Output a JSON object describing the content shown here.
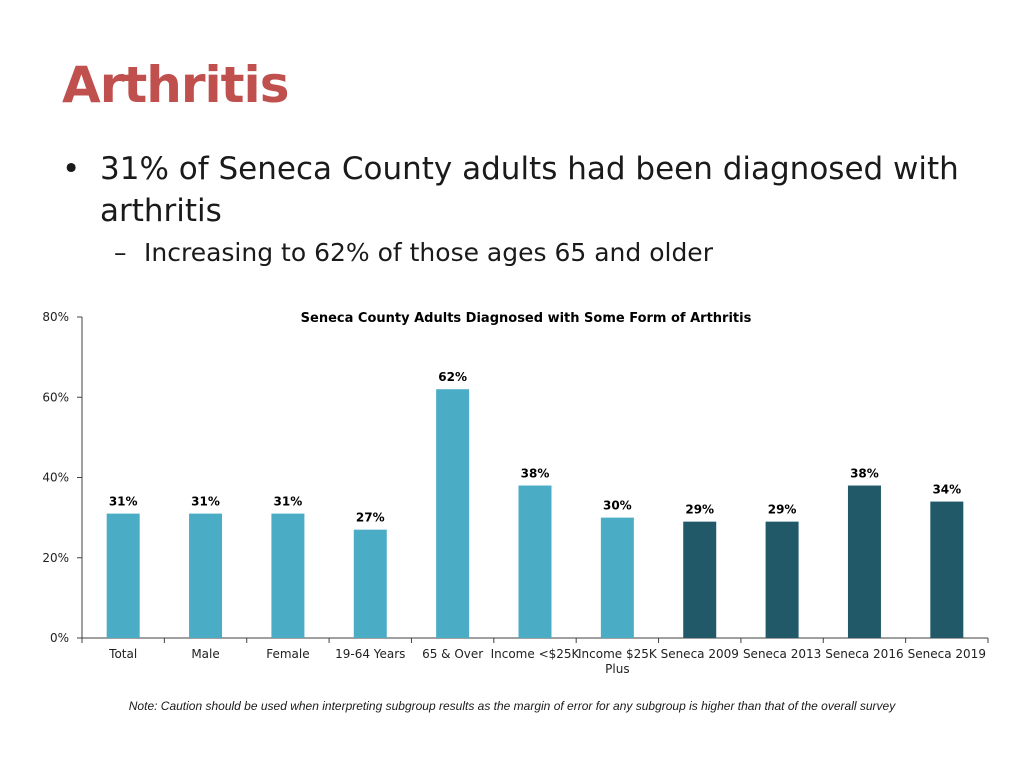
{
  "slide": {
    "title": "Arthritis",
    "bullet": "31% of Seneca County adults had been diagnosed with arthritis",
    "subbullet": "Increasing to 62% of those ages 65 and older",
    "bullet_marker": "•",
    "subbullet_marker": "–",
    "note": "Note: Caution should be used when interpreting subgroup results as the margin of error for any subgroup is higher than that of the overall survey"
  },
  "colors": {
    "title": "#c0504d",
    "bar_subgroup": "#4bacc6",
    "bar_trend": "#215968",
    "axis": "#404040"
  },
  "chart_data": {
    "type": "bar",
    "title": "Seneca County Adults Diagnosed with Some Form of Arthritis",
    "xlabel": "",
    "ylabel": "",
    "ylim": [
      0,
      80
    ],
    "yticks": [
      0,
      20,
      40,
      60,
      80
    ],
    "ytick_labels": [
      "0%",
      "20%",
      "40%",
      "60%",
      "80%"
    ],
    "categories": [
      "Total",
      "Male",
      "Female",
      "19-64 Years",
      "65 & Over",
      "Income <$25K",
      "Income $25K Plus",
      "Seneca 2009",
      "Seneca 2013",
      "Seneca 2016",
      "Seneca 2019"
    ],
    "category_lines": [
      [
        "Total"
      ],
      [
        "Male"
      ],
      [
        "Female"
      ],
      [
        "19-64 Years"
      ],
      [
        "65 & Over"
      ],
      [
        "Income <$25K"
      ],
      [
        "Income $25K",
        "Plus"
      ],
      [
        "Seneca 2009"
      ],
      [
        "Seneca 2013"
      ],
      [
        "Seneca 2016"
      ],
      [
        "Seneca 2019"
      ]
    ],
    "values": [
      31,
      31,
      31,
      27,
      62,
      38,
      30,
      29,
      29,
      38,
      34
    ],
    "data_labels": [
      "31%",
      "31%",
      "31%",
      "27%",
      "62%",
      "38%",
      "30%",
      "29%",
      "29%",
      "38%",
      "34%"
    ],
    "bar_group": [
      "subgroup",
      "subgroup",
      "subgroup",
      "subgroup",
      "subgroup",
      "subgroup",
      "subgroup",
      "trend",
      "trend",
      "trend",
      "trend"
    ],
    "grid": false,
    "legend": "none"
  }
}
